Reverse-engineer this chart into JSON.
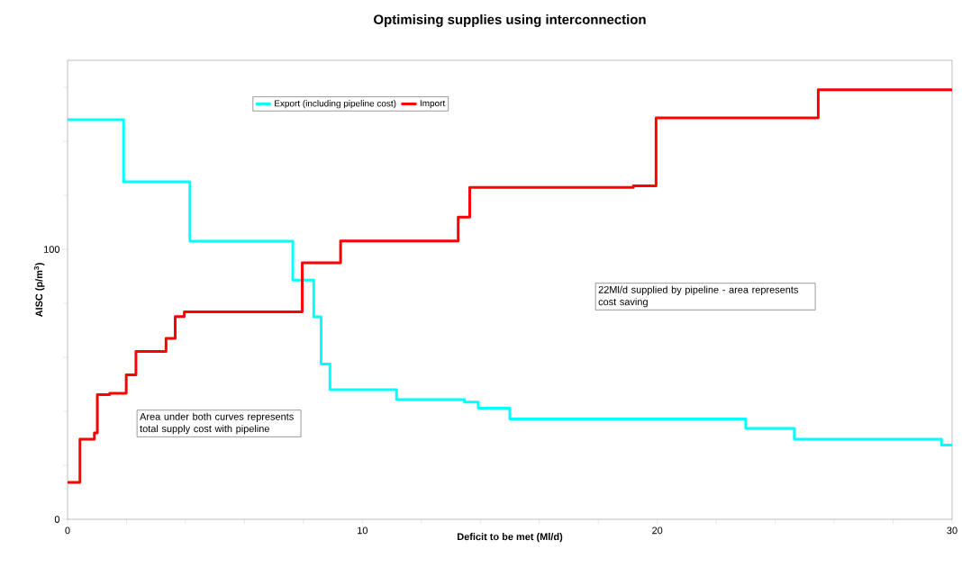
{
  "chart_data": {
    "type": "step",
    "title": "Optimising supplies using interconnection",
    "xlabel": "Deficit to be met (Ml/d)",
    "ylabel": "AISC (p/m$^{3}$)",
    "xlim": [
      0,
      30
    ],
    "ylim": [
      0,
      170
    ],
    "xticks": [
      0,
      {
        "value": 2,
        "label": null
      },
      {
        "value": 4,
        "label": null
      },
      {
        "value": 6,
        "label": null
      },
      {
        "value": 8,
        "label": null
      },
      10,
      {
        "value": 12,
        "label": null
      },
      {
        "value": 14,
        "label": null
      },
      {
        "value": 16,
        "label": null
      },
      {
        "value": 18,
        "label": null
      },
      20,
      {
        "value": 22,
        "label": null
      },
      {
        "value": 24,
        "label": null
      },
      {
        "value": 26,
        "label": null
      },
      {
        "value": 28,
        "label": null
      },
      30
    ],
    "yticks": [
      0,
      {
        "value": 20,
        "label": null
      },
      {
        "value": 40,
        "label": null
      },
      {
        "value": 60,
        "label": null
      },
      {
        "value": 80,
        "label": null
      },
      100,
      {
        "value": 120,
        "label": null
      },
      {
        "value": 140,
        "label": null
      },
      {
        "value": 160,
        "label": null
      }
    ],
    "legend": "top",
    "series": [
      {
        "name": "Export (including pipeline cost)",
        "color": "#00ffff",
        "x": [
          0,
          1.9,
          4.15,
          7.64,
          8.35,
          8.6,
          8.9,
          11.16,
          13.46,
          13.93,
          15,
          23,
          24.65,
          29.64,
          30
        ],
        "values": [
          148,
          125,
          103,
          88.6,
          75,
          57.5,
          48,
          44.3,
          43.4,
          41.2,
          37.2,
          33.7,
          29.7,
          27.5,
          27.5
        ]
      },
      {
        "name": "Import",
        "color": "#ff0000",
        "x": [
          0,
          0.42,
          0.91,
          1.01,
          1.43,
          1.99,
          2.32,
          3.34,
          3.65,
          3.96,
          7.96,
          9.26,
          13.25,
          13.64,
          19.19,
          19.96,
          25.46,
          30
        ],
        "values": [
          13.7,
          29.7,
          32,
          46.2,
          46.7,
          53.5,
          62.2,
          67,
          75.1,
          76.8,
          95,
          103.1,
          111.9,
          122.9,
          123.5,
          148.7,
          159.1,
          159.1
        ]
      }
    ],
    "annotations": [
      "Area under both curves represents total supply cost with pipeline",
      "22Ml/d supplied by pipeline - area represents cost saving"
    ]
  }
}
